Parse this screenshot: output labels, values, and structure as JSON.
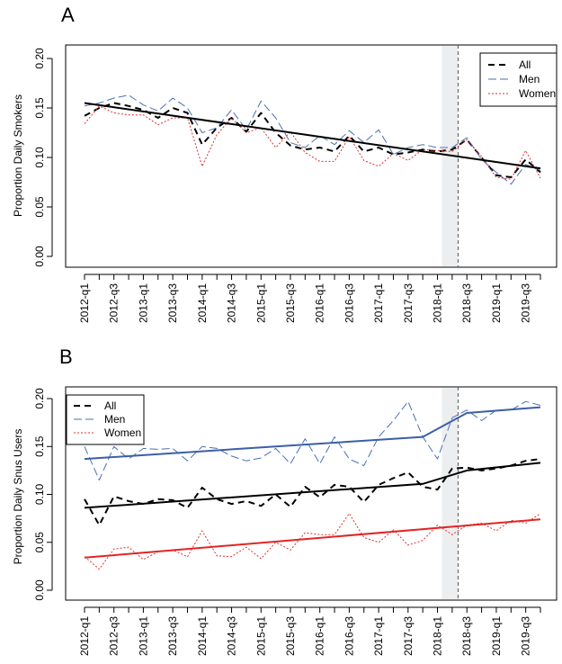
{
  "chart_data": [
    {
      "type": "line",
      "panel_label": "A",
      "ylabel": "Proportion Daily Smokers",
      "xlabel": "",
      "ylim": [
        0,
        0.2
      ],
      "yticks": [
        "0.00",
        "0.05",
        "0.10",
        "0.15",
        "0.20"
      ],
      "xticks": [
        "2012-q1",
        "2012-q3",
        "2013-q1",
        "2013-q3",
        "2014-q1",
        "2014-q3",
        "2015-q1",
        "2015-q3",
        "2016-q1",
        "2016-q3",
        "2017-q1",
        "2017-q3",
        "2018-q1",
        "2018-q3",
        "2019-q1",
        "2019-q3"
      ],
      "x_count": 32,
      "shaded_region": {
        "from_index": 24.3,
        "to_index": 25.4
      },
      "dashed_vline_index": 25.4,
      "legend": {
        "position": "top-right",
        "entries": [
          {
            "label": "All",
            "style": "black-dash"
          },
          {
            "label": "Men",
            "style": "blue-longdash"
          },
          {
            "label": "Women",
            "style": "red-dotted"
          }
        ]
      },
      "series": [
        {
          "name": "All",
          "color": "#000000",
          "dash": "7,5",
          "width": 2,
          "values": [
            0.142,
            0.15,
            0.155,
            0.152,
            0.148,
            0.14,
            0.15,
            0.145,
            0.113,
            0.13,
            0.14,
            0.126,
            0.145,
            0.125,
            0.112,
            0.108,
            0.11,
            0.106,
            0.122,
            0.106,
            0.11,
            0.103,
            0.105,
            0.108,
            0.106,
            0.108,
            0.118,
            0.1,
            0.082,
            0.08,
            0.098,
            0.085
          ]
        },
        {
          "name": "Men",
          "color": "#4a6fb5",
          "dash": "9,4",
          "width": 1,
          "values": [
            0.152,
            0.155,
            0.16,
            0.163,
            0.153,
            0.147,
            0.16,
            0.15,
            0.125,
            0.13,
            0.148,
            0.128,
            0.157,
            0.14,
            0.115,
            0.11,
            0.122,
            0.113,
            0.127,
            0.115,
            0.128,
            0.103,
            0.11,
            0.113,
            0.11,
            0.11,
            0.12,
            0.098,
            0.085,
            0.073,
            0.093,
            0.087
          ]
        },
        {
          "name": "Women",
          "color": "#e03030",
          "dash": "2,2",
          "width": 1,
          "values": [
            0.134,
            0.152,
            0.145,
            0.143,
            0.143,
            0.133,
            0.14,
            0.14,
            0.091,
            0.123,
            0.14,
            0.125,
            0.13,
            0.11,
            0.126,
            0.105,
            0.096,
            0.096,
            0.121,
            0.097,
            0.091,
            0.104,
            0.097,
            0.108,
            0.107,
            0.106,
            0.118,
            0.101,
            0.08,
            0.078,
            0.107,
            0.079
          ]
        },
        {
          "name": "Trend",
          "color": "#000000",
          "dash": "",
          "width": 2,
          "points": [
            [
              0,
              0.155
            ],
            [
              31,
              0.089
            ]
          ]
        }
      ]
    },
    {
      "type": "line",
      "panel_label": "B",
      "ylabel": "Proportion Daily Snus Users",
      "xlabel": "",
      "ylim": [
        0,
        0.2
      ],
      "yticks": [
        "0.00",
        "0.05",
        "0.10",
        "0.15",
        "0.20"
      ],
      "xticks": [
        "2012-q1",
        "2012-q3",
        "2013-q1",
        "2013-q3",
        "2014-q1",
        "2014-q3",
        "2015-q1",
        "2015-q3",
        "2016-q1",
        "2016-q3",
        "2017-q1",
        "2017-q3",
        "2018-q1",
        "2018-q3",
        "2019-q1",
        "2019-q3"
      ],
      "x_count": 32,
      "shaded_region": {
        "from_index": 24.3,
        "to_index": 25.4
      },
      "dashed_vline_index": 25.4,
      "legend": {
        "position": "top-left",
        "entries": [
          {
            "label": "All",
            "style": "black-dash"
          },
          {
            "label": "Men",
            "style": "blue-longdash"
          },
          {
            "label": "Women",
            "style": "red-dotted"
          }
        ]
      },
      "series": [
        {
          "name": "Men",
          "color": "#4a6fb5",
          "dash": "9,4",
          "width": 1,
          "values": [
            0.15,
            0.115,
            0.15,
            0.137,
            0.148,
            0.147,
            0.148,
            0.135,
            0.15,
            0.148,
            0.14,
            0.135,
            0.138,
            0.148,
            0.132,
            0.158,
            0.132,
            0.16,
            0.137,
            0.13,
            0.16,
            0.177,
            0.197,
            0.16,
            0.137,
            0.18,
            0.188,
            0.177,
            0.188,
            0.188,
            0.197,
            0.193
          ]
        },
        {
          "name": "All",
          "color": "#000000",
          "dash": "7,5",
          "width": 2,
          "values": [
            0.095,
            0.068,
            0.098,
            0.093,
            0.09,
            0.095,
            0.094,
            0.086,
            0.107,
            0.095,
            0.09,
            0.093,
            0.088,
            0.1,
            0.087,
            0.108,
            0.097,
            0.11,
            0.108,
            0.092,
            0.11,
            0.117,
            0.123,
            0.108,
            0.105,
            0.127,
            0.128,
            0.125,
            0.127,
            0.13,
            0.135,
            0.137
          ]
        },
        {
          "name": "Women",
          "color": "#e03030",
          "dash": "2,2",
          "width": 1,
          "values": [
            0.035,
            0.022,
            0.043,
            0.045,
            0.032,
            0.04,
            0.042,
            0.035,
            0.062,
            0.036,
            0.035,
            0.045,
            0.033,
            0.05,
            0.042,
            0.06,
            0.058,
            0.058,
            0.08,
            0.055,
            0.05,
            0.063,
            0.047,
            0.052,
            0.068,
            0.058,
            0.068,
            0.07,
            0.062,
            0.073,
            0.07,
            0.08
          ]
        },
        {
          "name": "Trend-Men",
          "color": "#3c5ea8",
          "dash": "",
          "width": 2,
          "points": [
            [
              0,
              0.137
            ],
            [
              23,
              0.16
            ],
            [
              26,
              0.185
            ],
            [
              31,
              0.191
            ]
          ]
        },
        {
          "name": "Trend-All",
          "color": "#000000",
          "dash": "",
          "width": 2,
          "points": [
            [
              0,
              0.086
            ],
            [
              23,
              0.111
            ],
            [
              26,
              0.125
            ],
            [
              31,
              0.133
            ]
          ]
        },
        {
          "name": "Trend-Women",
          "color": "#e32424",
          "dash": "",
          "width": 2,
          "points": [
            [
              0,
              0.034
            ],
            [
              31,
              0.074
            ]
          ]
        }
      ]
    }
  ]
}
